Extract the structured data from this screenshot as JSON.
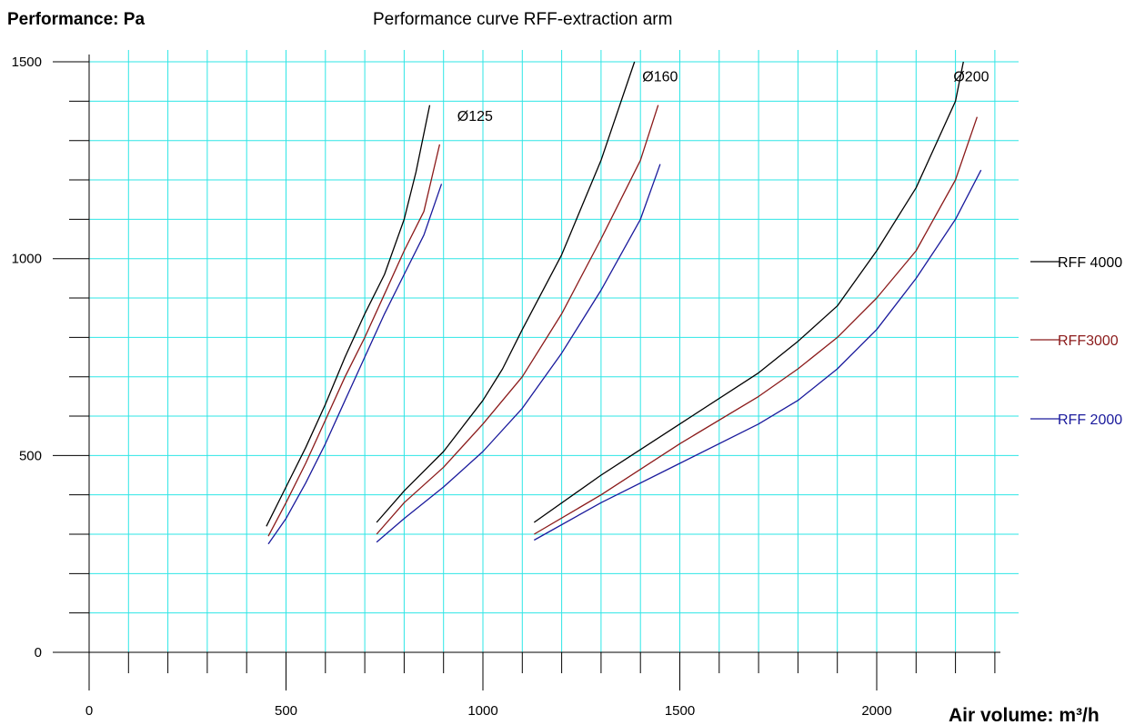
{
  "chart_data": {
    "type": "line",
    "title": "Performance curve RFF-extraction arm",
    "ylabel": "Performance: Pa",
    "xlabel": "Air volume: m³/h",
    "xlim": [
      0,
      2300
    ],
    "ylim": [
      0,
      1500
    ],
    "x_ticks": [
      "0",
      "500",
      "1000",
      "1500",
      "2000"
    ],
    "y_ticks": [
      "0",
      "500",
      "1000",
      "1500"
    ],
    "grid": true,
    "legend_position": "right",
    "annotations": [
      {
        "text": "Ø125",
        "x": 980,
        "y": 1350
      },
      {
        "text": "Ø160",
        "x": 1450,
        "y": 1450
      },
      {
        "text": "Ø200",
        "x": 2240,
        "y": 1450
      }
    ],
    "series": [
      {
        "name": "RFF 4000",
        "color": "#000000",
        "curves": [
          [
            [
              450,
              320
            ],
            [
              500,
              420
            ],
            [
              550,
              520
            ],
            [
              600,
              630
            ],
            [
              650,
              750
            ],
            [
              700,
              860
            ],
            [
              750,
              960
            ],
            [
              800,
              1100
            ],
            [
              830,
              1220
            ],
            [
              865,
              1390
            ]
          ],
          [
            [
              730,
              330
            ],
            [
              800,
              410
            ],
            [
              900,
              510
            ],
            [
              1000,
              640
            ],
            [
              1050,
              720
            ],
            [
              1100,
              820
            ],
            [
              1200,
              1010
            ],
            [
              1300,
              1250
            ],
            [
              1385,
              1500
            ]
          ],
          [
            [
              1130,
              330
            ],
            [
              1300,
              450
            ],
            [
              1500,
              580
            ],
            [
              1700,
              710
            ],
            [
              1800,
              790
            ],
            [
              1900,
              880
            ],
            [
              2000,
              1020
            ],
            [
              2100,
              1180
            ],
            [
              2200,
              1400
            ],
            [
              2220,
              1500
            ]
          ]
        ]
      },
      {
        "name": "RFF3000",
        "color": "#8b1a1a",
        "curves": [
          [
            [
              455,
              295
            ],
            [
              500,
              380
            ],
            [
              550,
              480
            ],
            [
              600,
              590
            ],
            [
              650,
              700
            ],
            [
              700,
              800
            ],
            [
              750,
              910
            ],
            [
              800,
              1020
            ],
            [
              850,
              1120
            ],
            [
              890,
              1290
            ]
          ],
          [
            [
              730,
              300
            ],
            [
              800,
              380
            ],
            [
              900,
              470
            ],
            [
              1000,
              580
            ],
            [
              1100,
              700
            ],
            [
              1200,
              860
            ],
            [
              1300,
              1050
            ],
            [
              1400,
              1250
            ],
            [
              1445,
              1390
            ]
          ],
          [
            [
              1130,
              300
            ],
            [
              1300,
              400
            ],
            [
              1500,
              530
            ],
            [
              1700,
              650
            ],
            [
              1800,
              720
            ],
            [
              1900,
              800
            ],
            [
              2000,
              900
            ],
            [
              2100,
              1020
            ],
            [
              2200,
              1200
            ],
            [
              2255,
              1360
            ]
          ]
        ]
      },
      {
        "name": "RFF 2000",
        "color": "#1a1a9c",
        "curves": [
          [
            [
              455,
              275
            ],
            [
              500,
              340
            ],
            [
              550,
              430
            ],
            [
              600,
              530
            ],
            [
              650,
              640
            ],
            [
              700,
              750
            ],
            [
              750,
              860
            ],
            [
              800,
              960
            ],
            [
              850,
              1060
            ],
            [
              895,
              1190
            ]
          ],
          [
            [
              730,
              280
            ],
            [
              800,
              340
            ],
            [
              900,
              420
            ],
            [
              1000,
              510
            ],
            [
              1100,
              620
            ],
            [
              1200,
              760
            ],
            [
              1300,
              920
            ],
            [
              1400,
              1100
            ],
            [
              1450,
              1240
            ]
          ],
          [
            [
              1130,
              285
            ],
            [
              1300,
              380
            ],
            [
              1500,
              480
            ],
            [
              1700,
              580
            ],
            [
              1800,
              640
            ],
            [
              1900,
              720
            ],
            [
              2000,
              820
            ],
            [
              2100,
              950
            ],
            [
              2200,
              1100
            ],
            [
              2265,
              1225
            ]
          ]
        ]
      }
    ]
  }
}
